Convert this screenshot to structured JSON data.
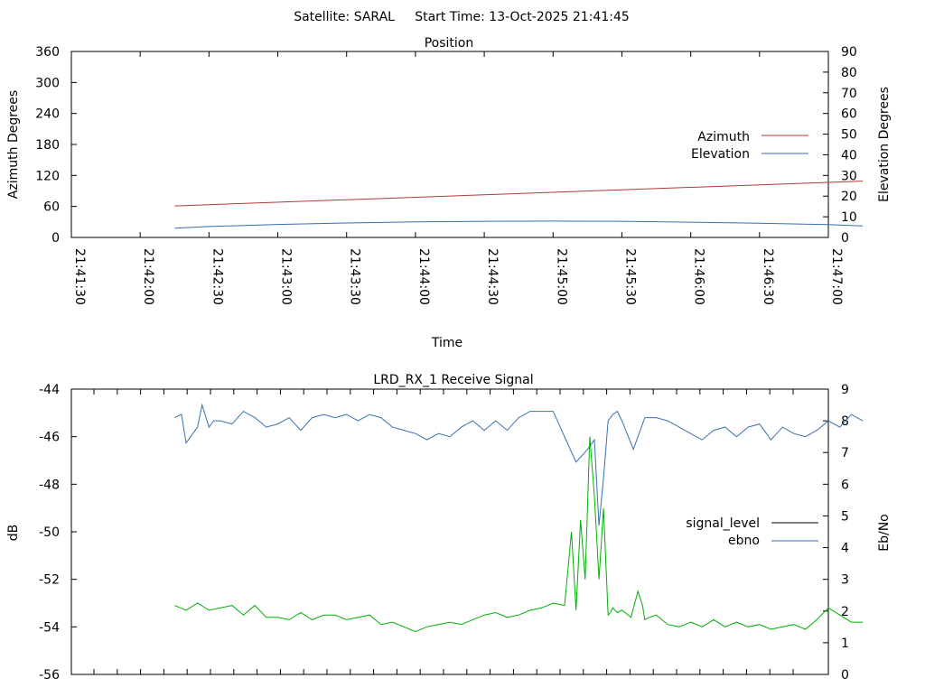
{
  "header": {
    "title": "Satellite: SARAL     Start Time: 13-Oct-2025 21:41:45"
  },
  "colors": {
    "azimuth": "#b03a3a",
    "elevation": "#3a6eb0",
    "signal_level": "#000000",
    "ebno": "#3a6eb0",
    "green_trace": "#00b000"
  },
  "chart_data": [
    {
      "type": "line",
      "title": "Position",
      "xlabel": "Time",
      "ylabel": "Azimuth Degrees",
      "y2label": "Elevation Degrees",
      "x_ticks": [
        "21:41:30",
        "21:42:00",
        "21:42:30",
        "21:43:00",
        "21:43:30",
        "21:44:00",
        "21:44:30",
        "21:45:00",
        "21:45:30",
        "21:46:00",
        "21:46:30",
        "21:47:00"
      ],
      "ylim": [
        0,
        360
      ],
      "y_ticks": [
        0,
        60,
        120,
        180,
        240,
        300,
        360
      ],
      "y2lim": [
        0,
        90
      ],
      "y2_ticks": [
        0,
        10,
        20,
        30,
        40,
        50,
        60,
        70,
        80,
        90
      ],
      "legend_position": "right",
      "series": [
        {
          "name": "Azimuth",
          "axis": "y1",
          "x_seconds": [
            45,
            345
          ],
          "values": [
            61,
            109
          ]
        },
        {
          "name": "Elevation",
          "axis": "y2",
          "x_seconds": [
            45,
            60,
            90,
            120,
            150,
            180,
            210,
            240,
            270,
            300,
            330,
            345
          ],
          "values": [
            4.5,
            5.3,
            6.3,
            7.0,
            7.5,
            7.8,
            7.9,
            7.8,
            7.4,
            6.9,
            6.2,
            5.6
          ]
        }
      ]
    },
    {
      "type": "line",
      "title": "LRD_RX_1 Receive Signal",
      "xlabel": "",
      "ylabel": "dB",
      "y2label": "Eb/No",
      "ylim": [
        -56,
        -44
      ],
      "y_ticks": [
        -56,
        -54,
        -52,
        -50,
        -48,
        -46,
        -44
      ],
      "y2lim": [
        0,
        9
      ],
      "y2_ticks": [
        0,
        1,
        2,
        3,
        4,
        5,
        6,
        7,
        8,
        9
      ],
      "legend_position": "right",
      "series": [
        {
          "name": "signal_level",
          "axis": "y1",
          "values": []
        },
        {
          "name": "ebno",
          "axis": "y2",
          "x_seconds": [
            45,
            48,
            50,
            55,
            57,
            60,
            62,
            65,
            70,
            75,
            80,
            85,
            90,
            95,
            100,
            105,
            110,
            115,
            120,
            125,
            130,
            135,
            140,
            145,
            150,
            155,
            160,
            165,
            170,
            175,
            180,
            185,
            190,
            195,
            200,
            205,
            210,
            215,
            220,
            225,
            228,
            230,
            232,
            234,
            236,
            238,
            240,
            245,
            250,
            255,
            260,
            265,
            270,
            275,
            280,
            285,
            290,
            295,
            300,
            305,
            310,
            315,
            320,
            325,
            330,
            335,
            340,
            345
          ],
          "values": [
            8.1,
            8.2,
            7.3,
            7.8,
            8.5,
            7.8,
            8.0,
            8.0,
            7.9,
            8.3,
            8.1,
            7.8,
            7.9,
            8.1,
            7.7,
            8.1,
            8.2,
            8.1,
            8.2,
            8.0,
            8.2,
            8.1,
            7.8,
            7.7,
            7.6,
            7.4,
            7.6,
            7.5,
            7.8,
            8.0,
            7.7,
            8.0,
            7.7,
            8.1,
            8.3,
            8.3,
            8.3,
            7.5,
            6.7,
            7.1,
            7.4,
            4.7,
            6.2,
            8.0,
            8.2,
            8.3,
            8.0,
            7.1,
            8.1,
            8.1,
            8.0,
            7.8,
            7.6,
            7.4,
            7.7,
            7.8,
            7.5,
            7.8,
            7.9,
            7.4,
            7.8,
            7.6,
            7.5,
            7.7,
            8.0,
            7.8,
            8.2,
            8.0
          ]
        },
        {
          "name": "",
          "axis": "y1",
          "x_seconds": [
            45,
            50,
            55,
            60,
            65,
            70,
            75,
            80,
            85,
            90,
            95,
            100,
            105,
            110,
            115,
            120,
            125,
            130,
            135,
            140,
            145,
            150,
            155,
            160,
            165,
            170,
            175,
            180,
            185,
            190,
            195,
            200,
            205,
            210,
            215,
            218,
            220,
            222,
            224,
            226,
            228,
            230,
            232,
            234,
            235,
            236,
            238,
            240,
            244,
            247,
            249,
            250,
            252,
            255,
            260,
            265,
            270,
            275,
            280,
            285,
            290,
            295,
            300,
            305,
            310,
            315,
            320,
            325,
            330,
            335,
            340,
            345
          ],
          "values": [
            -53.1,
            -53.3,
            -53.0,
            -53.3,
            -53.2,
            -53.1,
            -53.5,
            -53.1,
            -53.6,
            -53.6,
            -53.7,
            -53.4,
            -53.7,
            -53.5,
            -53.5,
            -53.7,
            -53.6,
            -53.5,
            -53.9,
            -53.8,
            -54.0,
            -54.2,
            -54.0,
            -53.9,
            -53.8,
            -53.9,
            -53.7,
            -53.5,
            -53.4,
            -53.6,
            -53.5,
            -53.3,
            -53.2,
            -53.0,
            -53.1,
            -50.0,
            -53.3,
            -49.5,
            -52.0,
            -46.0,
            -48.5,
            -52.0,
            -49.0,
            -53.5,
            -53.4,
            -53.2,
            -53.4,
            -53.3,
            -53.6,
            -52.5,
            -53.1,
            -53.7,
            -53.6,
            -53.5,
            -53.9,
            -54.0,
            -53.8,
            -54.0,
            -53.7,
            -54.0,
            -53.8,
            -54.0,
            -53.9,
            -54.1,
            -54.0,
            -53.9,
            -54.1,
            -53.7,
            -53.2,
            -53.5,
            -53.8,
            -53.8
          ]
        }
      ]
    }
  ]
}
